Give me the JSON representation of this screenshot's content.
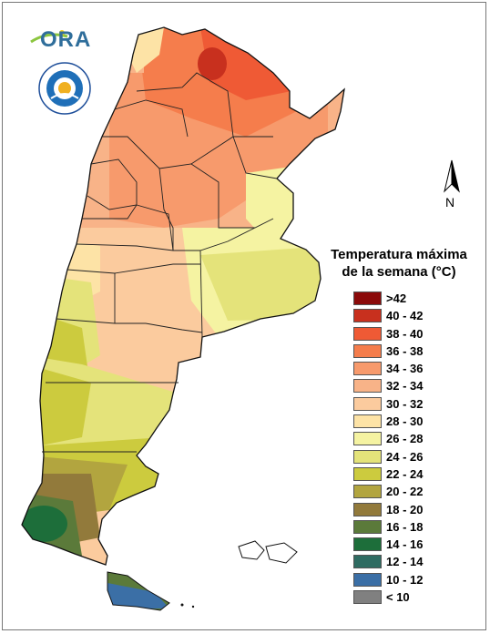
{
  "logo": {
    "text": "ORA"
  },
  "seal": {
    "name": "smn-seal"
  },
  "north_arrow": {
    "label": "N"
  },
  "legend": {
    "title_line1": "Temperatura máxima",
    "title_line2": "de la semana (°C)",
    "items": [
      {
        "label": ">42",
        "color": "#8b0a0a"
      },
      {
        "label": "40 - 42",
        "color": "#c8301e"
      },
      {
        "label": "38 - 40",
        "color": "#ef5a35"
      },
      {
        "label": "36 - 38",
        "color": "#f57d4c"
      },
      {
        "label": "34 - 36",
        "color": "#f79a6c"
      },
      {
        "label": "32 - 34",
        "color": "#f8b388"
      },
      {
        "label": "30 - 32",
        "color": "#fbcb9e"
      },
      {
        "label": "28 - 30",
        "color": "#fde3a6"
      },
      {
        "label": "26 - 28",
        "color": "#f5f3a2"
      },
      {
        "label": "24 - 26",
        "color": "#e4e37a"
      },
      {
        "label": "22 - 24",
        "color": "#cccb3e"
      },
      {
        "label": "20 - 22",
        "color": "#b2a53f"
      },
      {
        "label": "18 - 20",
        "color": "#927a3b"
      },
      {
        "label": "16 - 18",
        "color": "#5b7a3a"
      },
      {
        "label": "14 - 16",
        "color": "#1d6e3a"
      },
      {
        "label": "12 - 14",
        "color": "#2f6c62"
      },
      {
        "label": "10 - 12",
        "color": "#3b6fa6"
      },
      {
        "label": "< 10",
        "color": "#808080"
      }
    ]
  }
}
